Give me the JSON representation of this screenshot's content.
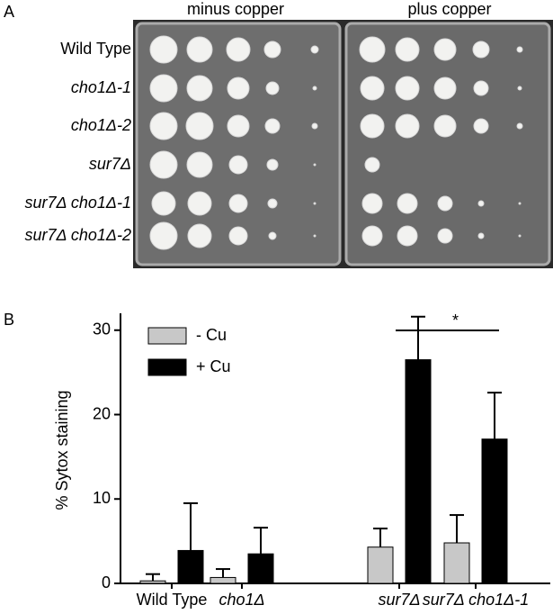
{
  "panel_a": {
    "label": "A",
    "columns": [
      "minus copper",
      "plus copper"
    ],
    "rows": [
      "Wild Type",
      "cho1Δ-1",
      "cho1Δ-2",
      "sur7Δ",
      "sur7Δ cho1Δ-1",
      "sur7Δ cho1Δ-2"
    ]
  },
  "chart_data": {
    "type": "bar",
    "panel_label": "B",
    "ylabel": "% Sytox staining",
    "categories": [
      "Wild Type",
      "cho1Δ",
      "sur7Δ",
      "sur7Δ cho1Δ-1"
    ],
    "series": [
      {
        "name": "- Cu",
        "color": "#c8c8c8",
        "values": [
          0.3,
          0.7,
          4.3,
          4.8
        ],
        "errors": [
          0.8,
          1.0,
          2.2,
          3.3
        ]
      },
      {
        "name": "+ Cu",
        "color": "#000000",
        "values": [
          3.9,
          3.5,
          26.5,
          17.1
        ],
        "errors": [
          5.6,
          3.1,
          5.1,
          5.5
        ]
      }
    ],
    "ylim": [
      0,
      32
    ],
    "yticks": [
      0,
      10,
      20,
      30
    ],
    "annotations": [
      "*"
    ]
  }
}
